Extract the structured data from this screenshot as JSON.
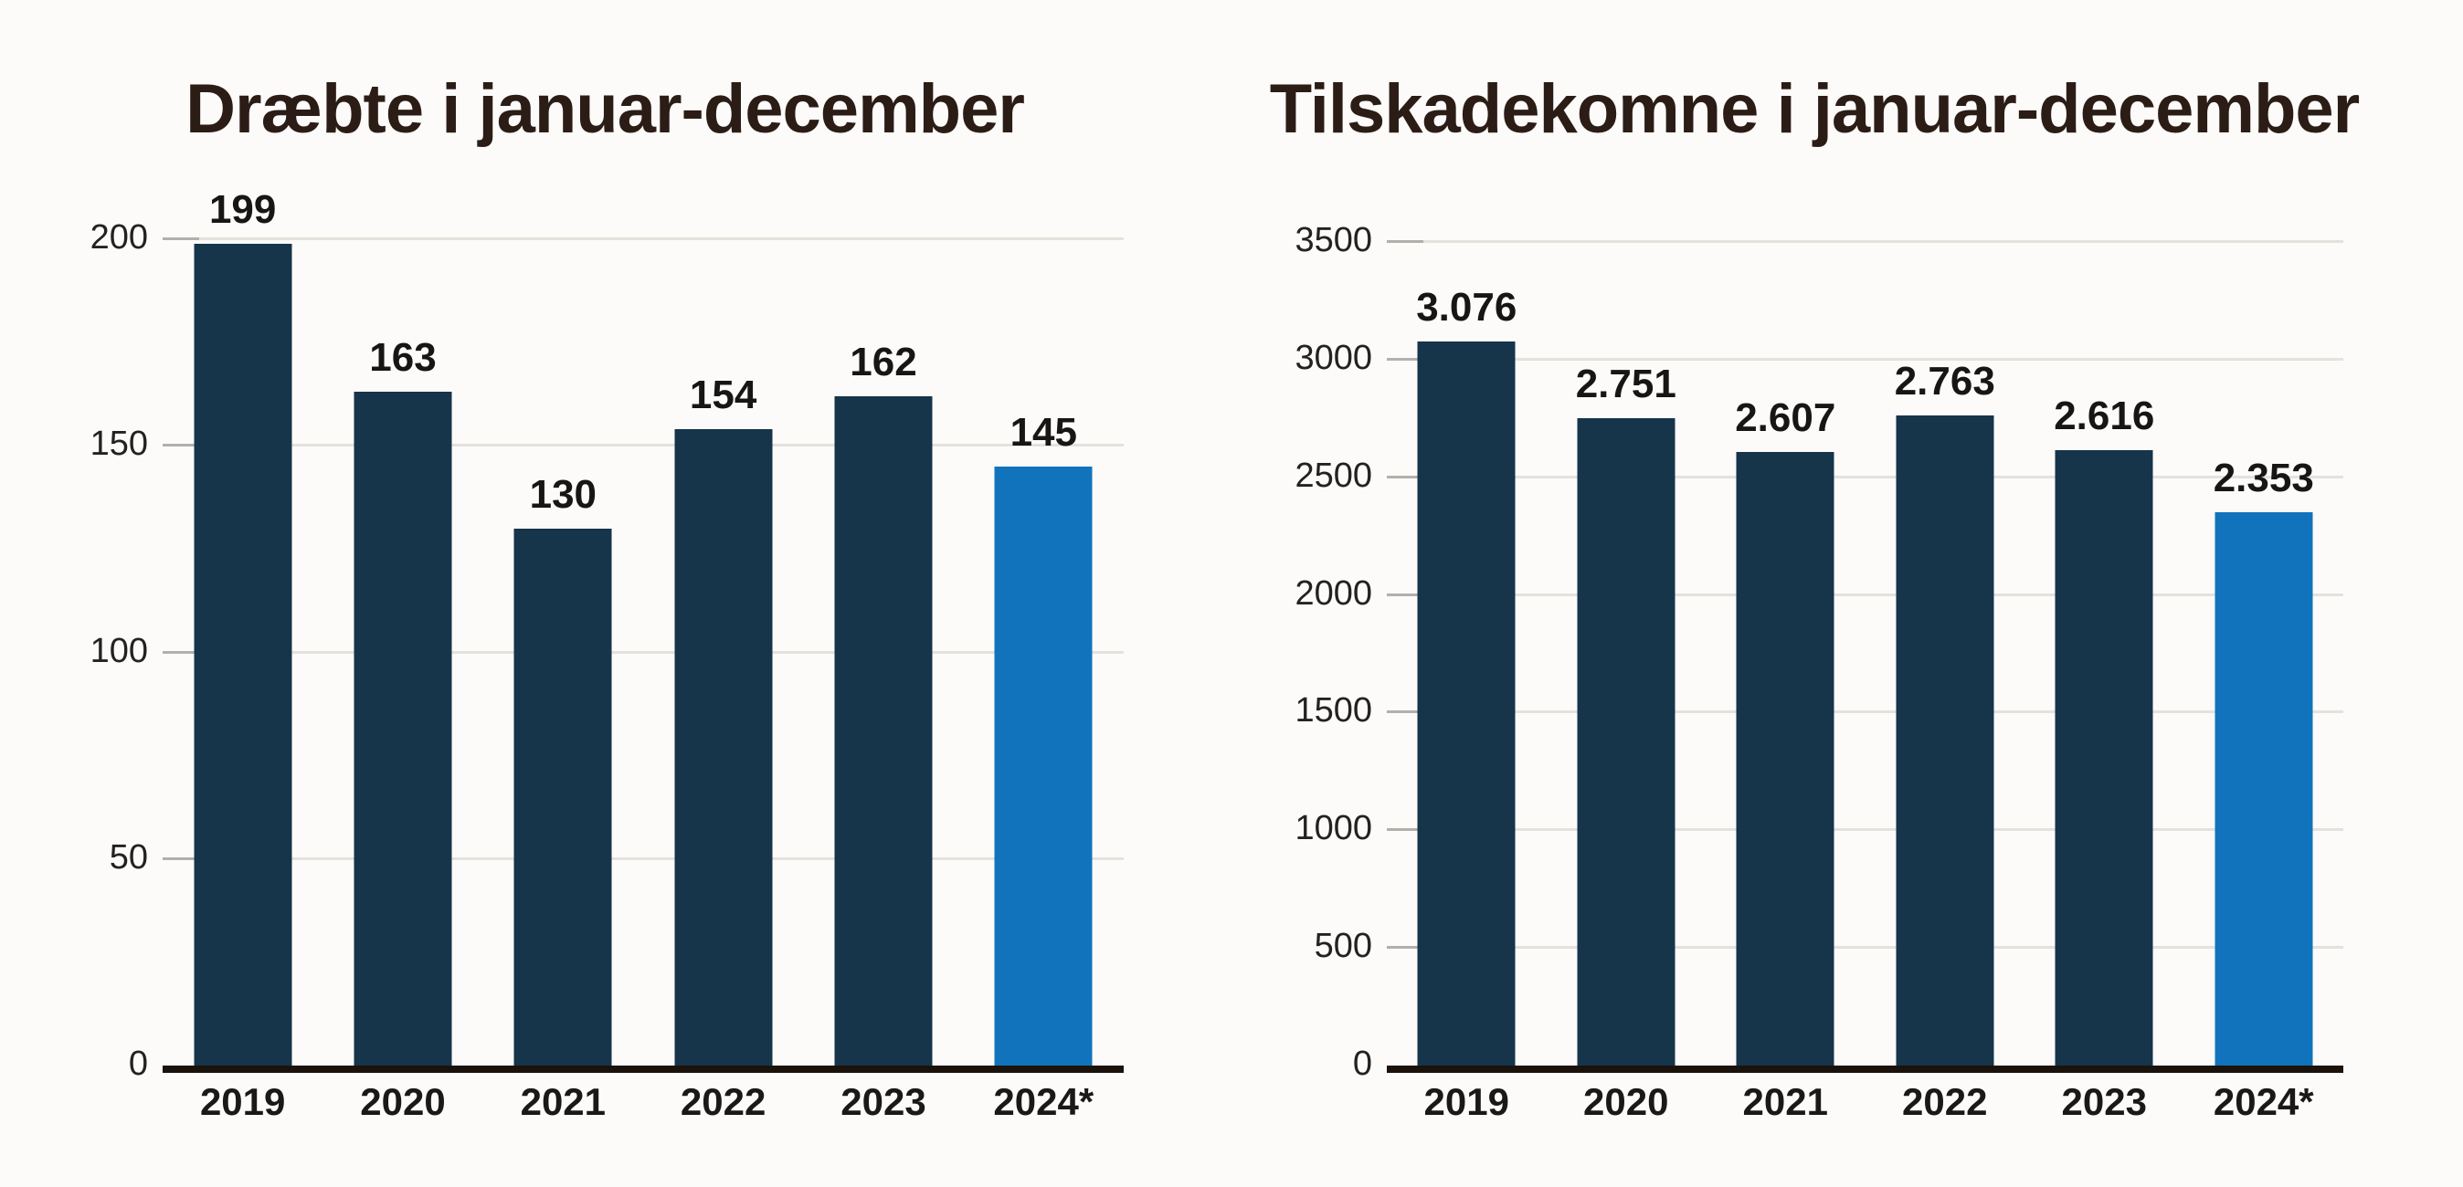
{
  "page": {
    "background": "#fcfbfa"
  },
  "colors": {
    "bar_navy": "#16344a",
    "bar_highlight_blue": "#1173bc",
    "title_text": "#2b1d16",
    "axis_baseline": "#1a120b",
    "gridline": "#e5e1dc",
    "tick": "#b3afab",
    "label_text": "#1b1917"
  },
  "chart_data": [
    {
      "type": "bar",
      "title": "Dræbte i januar-december",
      "categories": [
        "2019",
        "2020",
        "2021",
        "2022",
        "2023",
        "2024*"
      ],
      "values": [
        199,
        163,
        130,
        154,
        162,
        145
      ],
      "value_labels": [
        "199",
        "163",
        "130",
        "154",
        "162",
        "145"
      ],
      "xlabel": "",
      "ylabel": "",
      "ylim": [
        0,
        200
      ],
      "yticks": [
        0,
        50,
        100,
        150,
        200
      ],
      "ytick_labels": [
        "0",
        "50",
        "100",
        "150",
        "200"
      ],
      "grid": true,
      "legend": "none",
      "bar_color": "#16344a",
      "highlight_category": "2024*",
      "highlight_color": "#1173bc"
    },
    {
      "type": "bar",
      "title": "Tilskadekomne i januar-december",
      "categories": [
        "2019",
        "2020",
        "2021",
        "2022",
        "2023",
        "2024*"
      ],
      "values": [
        3076,
        2751,
        2607,
        2763,
        2616,
        2353
      ],
      "value_labels": [
        "3.076",
        "2.751",
        "2.607",
        "2.763",
        "2.616",
        "2.353"
      ],
      "xlabel": "",
      "ylabel": "",
      "ylim": [
        0,
        3500
      ],
      "yticks": [
        0,
        500,
        1000,
        1500,
        2000,
        2500,
        3000,
        3500
      ],
      "ytick_labels": [
        "0",
        "500",
        "1000",
        "1500",
        "2000",
        "2500",
        "3000",
        "3500"
      ],
      "grid": true,
      "legend": "none",
      "bar_color": "#16344a",
      "highlight_category": "2024*",
      "highlight_color": "#1173bc"
    }
  ]
}
